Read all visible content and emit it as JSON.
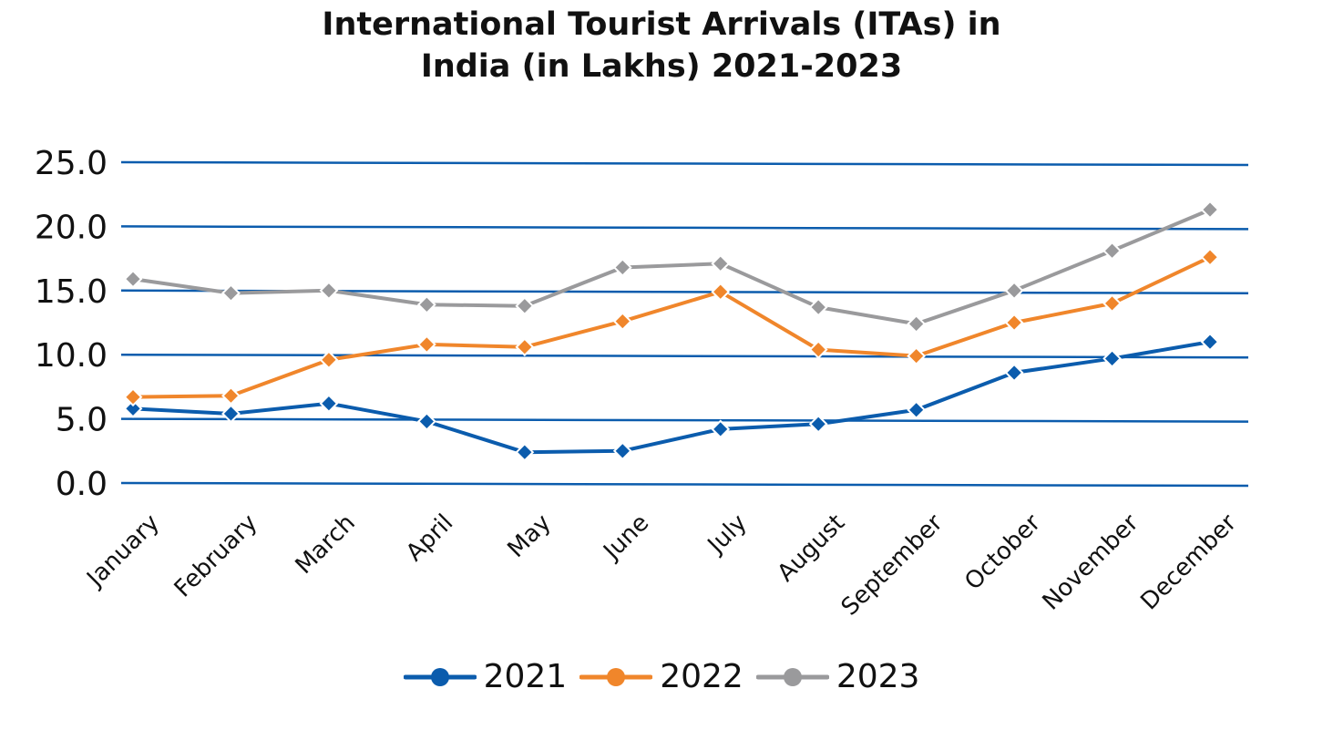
{
  "chart_data": {
    "type": "line",
    "title_line1": "International Tourist Arrivals (ITAs) in",
    "title_line2": "India (in Lakhs) 2021-2023",
    "categories": [
      "January",
      "February",
      "March",
      "April",
      "May",
      "June",
      "July",
      "August",
      "September",
      "October",
      "November",
      "December"
    ],
    "y_ticks": [
      "0.0",
      "5.0",
      "10.0",
      "15.0",
      "20.0",
      "25.0"
    ],
    "ylim": [
      0,
      25
    ],
    "grid": true,
    "legend_position": "bottom",
    "series": [
      {
        "name": "2021",
        "color": "#0B5CAD",
        "values": [
          5.8,
          5.4,
          6.2,
          4.8,
          2.4,
          2.5,
          4.2,
          4.6,
          5.7,
          8.6,
          9.7,
          11.0
        ]
      },
      {
        "name": "2022",
        "color": "#F0862B",
        "values": [
          6.7,
          6.8,
          9.6,
          10.8,
          10.6,
          12.6,
          14.9,
          10.4,
          9.9,
          12.5,
          14.0,
          17.6
        ]
      },
      {
        "name": "2023",
        "color": "#9A9A9C",
        "values": [
          15.9,
          14.8,
          15.0,
          13.9,
          13.8,
          16.8,
          17.1,
          13.7,
          12.4,
          15.0,
          18.1,
          21.3
        ]
      }
    ]
  }
}
